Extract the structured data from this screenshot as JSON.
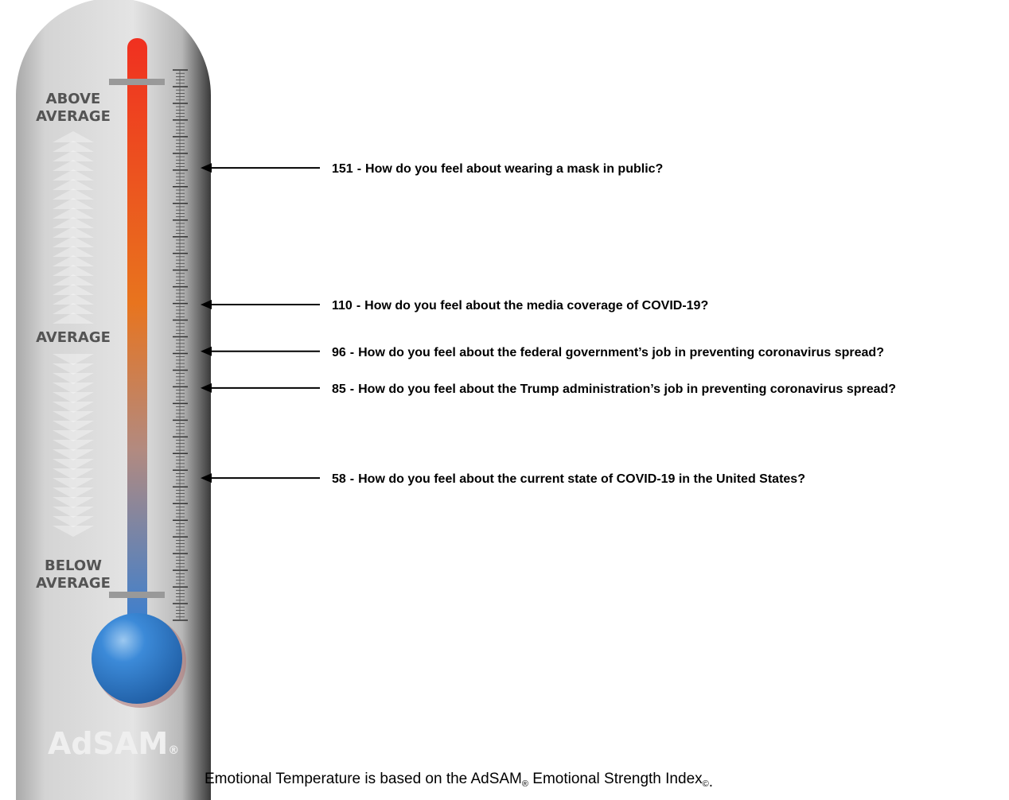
{
  "thermometer": {
    "above": [
      "ABOVE",
      "AVERAGE"
    ],
    "middle": "AVERAGE",
    "below": [
      "BELOW",
      "AVERAGE"
    ],
    "logo": "AdSAM",
    "logo_mark": "®"
  },
  "separator": "-",
  "items": [
    {
      "score": 151,
      "question": "How do you feel about wearing a mask in public?"
    },
    {
      "score": 110,
      "question": "How do you feel about the media coverage of COVID-19?"
    },
    {
      "score": 96,
      "question": "How do you feel about the federal government’s job in preventing coronavirus spread?"
    },
    {
      "score": 85,
      "question": "How do you feel about the Trump administration’s job in preventing coronavirus spread?"
    },
    {
      "score": 58,
      "question": "How do you feel about the current state of COVID-19 in the United States?"
    }
  ],
  "footer": {
    "text1": "Emotional Temperature is based on the AdSAM",
    "mark1": "®",
    "text2": " Emotional Strength Index",
    "mark2": "©",
    "end": "."
  }
}
